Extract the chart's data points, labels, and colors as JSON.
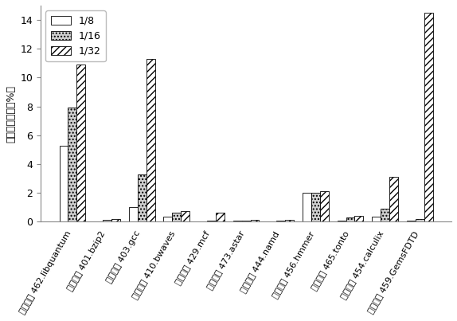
{
  "categories": [
    "测试程序 462.libquantum",
    "测试程序 401.bzip2",
    "测试程序 403.gcc",
    "测试程序 410.bwaves",
    "测试程序 429.mcf",
    "测试程序 473.astar",
    "测试程序 444.namd",
    "测试程序 456.hmmer",
    "测试程序 465.tonto",
    "测试程序 454.calculix",
    "测试程序 459.GemsFDTD"
  ],
  "series": {
    "1/8": [
      5.3,
      0.05,
      1.0,
      0.35,
      0.05,
      0.07,
      0.05,
      2.0,
      0.07,
      0.35,
      0.1
    ],
    "1/16": [
      7.9,
      0.15,
      3.3,
      0.65,
      0.1,
      0.08,
      0.1,
      2.0,
      0.3,
      0.9,
      0.2
    ],
    "1/32": [
      10.9,
      0.2,
      11.3,
      0.75,
      0.65,
      0.15,
      0.15,
      2.1,
      0.4,
      3.1,
      14.5
    ]
  },
  "ylabel": "运行时间开销（%）",
  "ylim": [
    0,
    15
  ],
  "yticks": [
    0,
    2,
    4,
    6,
    8,
    10,
    12,
    14
  ],
  "bar_width": 0.25,
  "legend_labels": [
    "1/8",
    "1/16",
    "1/32"
  ],
  "hatches": [
    "",
    "....",
    "////"
  ],
  "facecolors": [
    "white",
    "#d0d0d0",
    "white"
  ],
  "edgecolors": [
    "black",
    "black",
    "black"
  ],
  "background_color": "#ffffff",
  "font_size": 8,
  "ylabel_fontsize": 9
}
